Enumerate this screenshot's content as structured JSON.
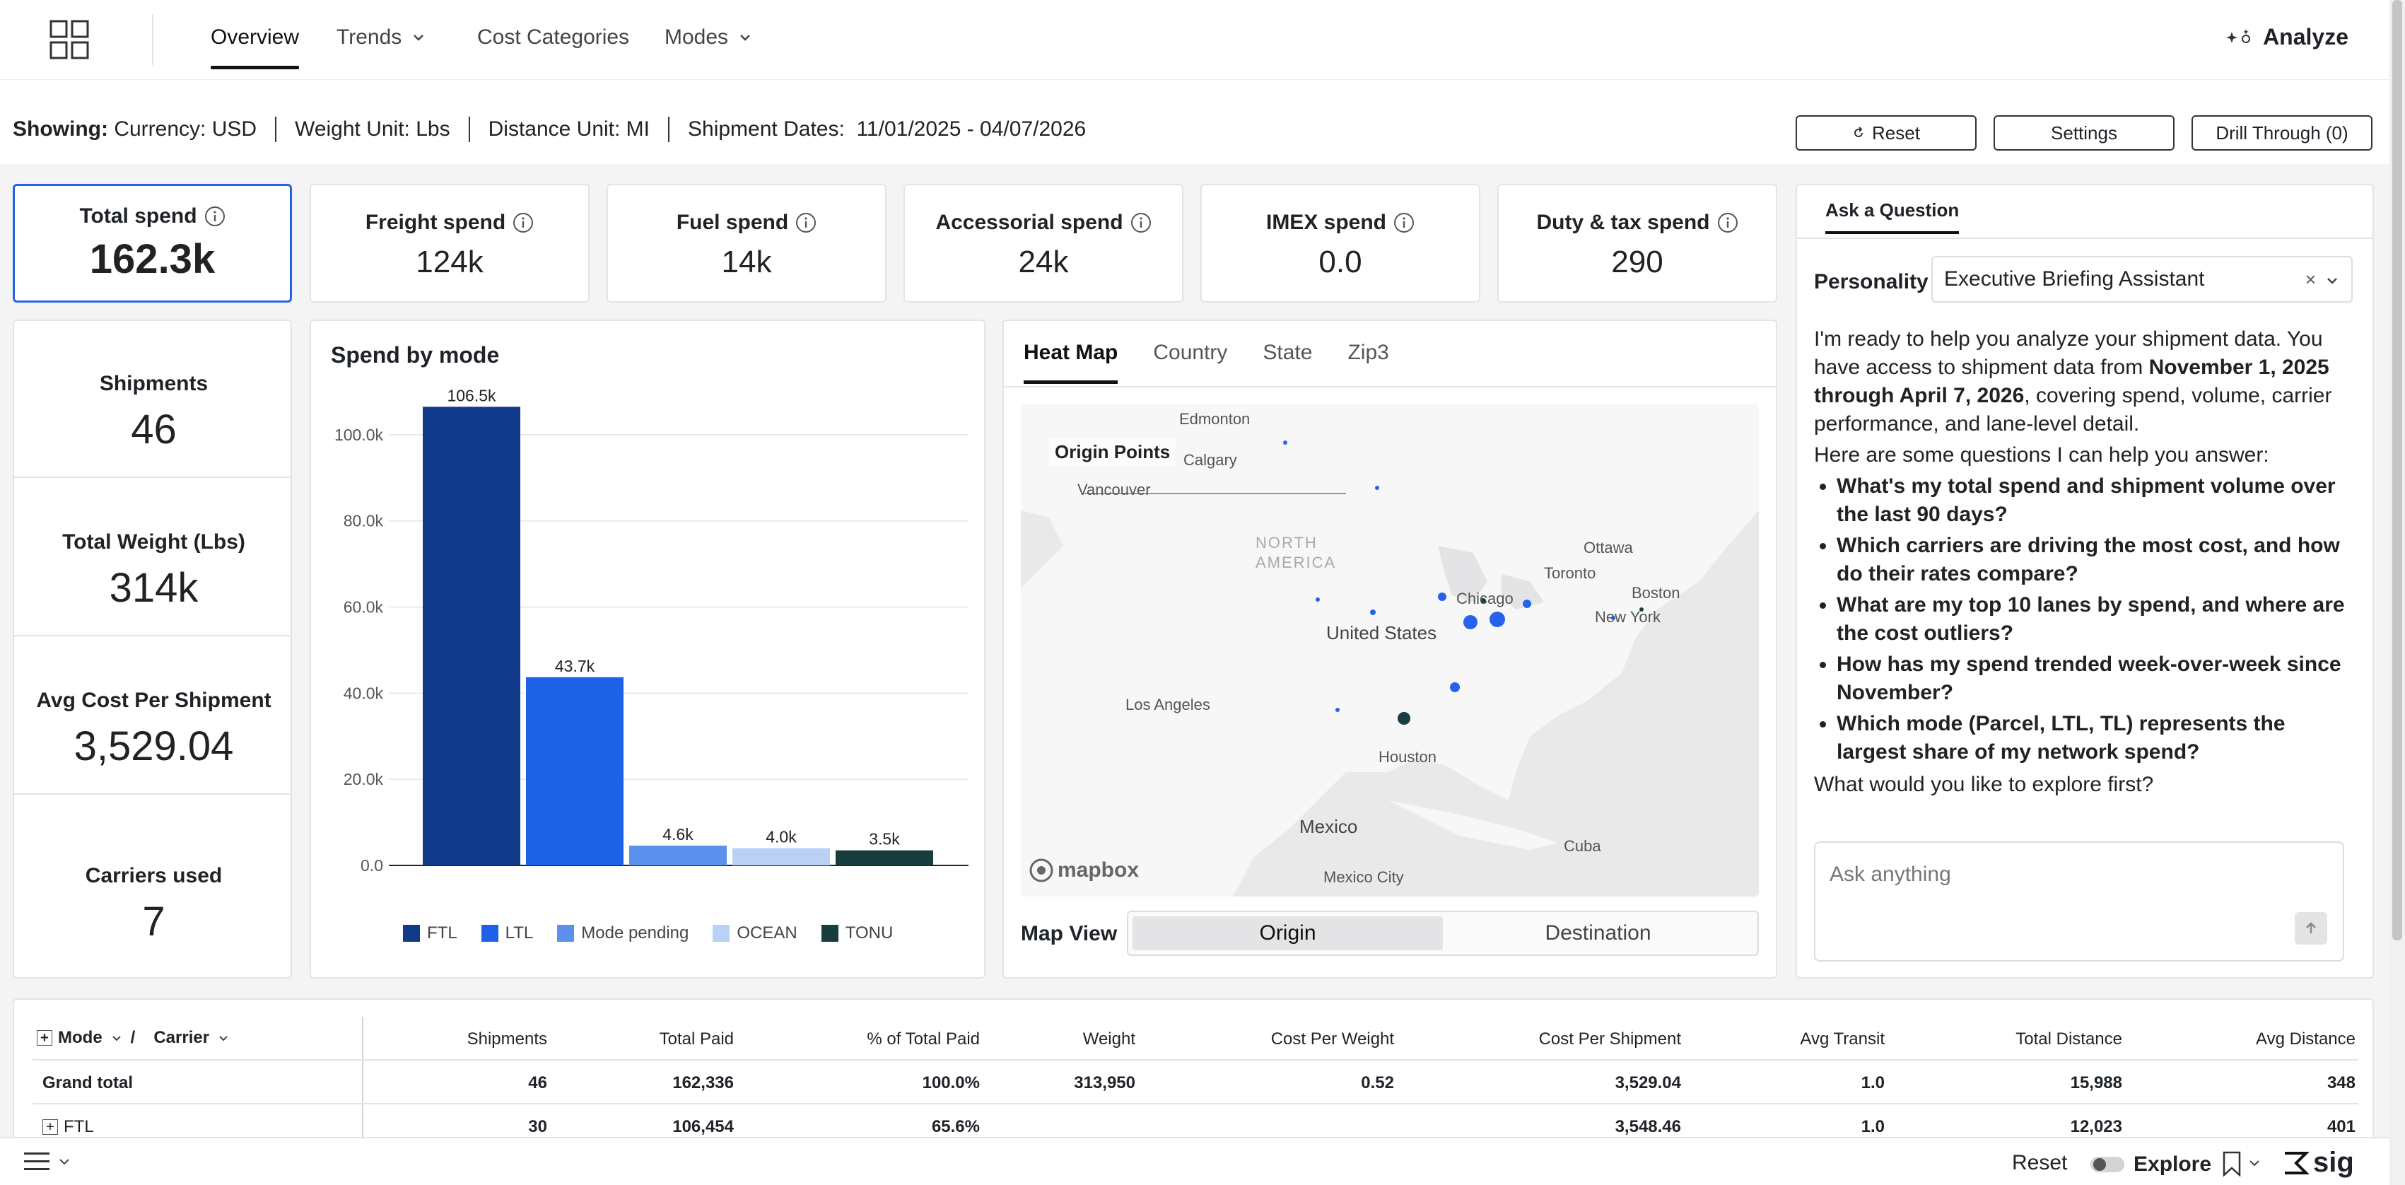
{
  "nav": {
    "tabs": [
      {
        "label": "Overview"
      },
      {
        "label": "Trends"
      },
      {
        "label": "Cost Categories"
      },
      {
        "label": "Modes"
      }
    ],
    "analyze_label": "Analyze"
  },
  "filters": {
    "showing_label": "Showing:",
    "currency": "Currency: USD",
    "weight": "Weight Unit: Lbs",
    "distance": "Distance Unit: MI",
    "dates_label": "Shipment Dates:",
    "dates_value": "11/01/2025 - 04/07/2026",
    "reset_label": "Reset",
    "settings_label": "Settings",
    "drill_label": "Drill Through (0)"
  },
  "kpis": [
    {
      "title": "Total spend",
      "value": "162.3k"
    },
    {
      "title": "Freight spend",
      "value": "124k"
    },
    {
      "title": "Fuel spend",
      "value": "14k"
    },
    {
      "title": "Accessorial spend",
      "value": "24k"
    },
    {
      "title": "IMEX spend",
      "value": "0.0"
    },
    {
      "title": "Duty & tax spend",
      "value": "290"
    }
  ],
  "side_stats": [
    {
      "title": "Shipments",
      "value": "46"
    },
    {
      "title": "Total Weight (Lbs)",
      "value": "314k"
    },
    {
      "title": "Avg Cost Per Shipment",
      "value": "3,529.04"
    },
    {
      "title": "Carriers used",
      "value": "7"
    }
  ],
  "chart_data": {
    "type": "bar",
    "title": "Spend by mode",
    "categories": [
      "FTL",
      "LTL",
      "Mode pending",
      "OCEAN",
      "TONU"
    ],
    "values": [
      106500,
      43700,
      4600,
      4000,
      3500
    ],
    "value_labels": [
      "106.5k",
      "43.7k",
      "4.6k",
      "4.0k",
      "3.5k"
    ],
    "colors": [
      "#123a8a",
      "#1d62e6",
      "#5b91ec",
      "#b8d1f5",
      "#173d3f"
    ],
    "ylim": [
      0,
      110000
    ],
    "yticks": [
      0,
      20000,
      40000,
      60000,
      80000,
      100000
    ],
    "ytick_labels": [
      "0.0",
      "20.0k",
      "40.0k",
      "60.0k",
      "80.0k",
      "100.0k"
    ],
    "grid": true,
    "legend": "bottom"
  },
  "map": {
    "tabs": [
      {
        "label": "Heat Map"
      },
      {
        "label": "Country"
      },
      {
        "label": "State"
      },
      {
        "label": "Zip3"
      }
    ],
    "origin_points": "Origin Points",
    "labels": {
      "edmonton": "Edmonton",
      "calgary": "Calgary",
      "vancouver": "Vancouver",
      "north_america": "NORTH AMERICA",
      "ottawa": "Ottawa",
      "toronto": "Toronto",
      "chicago": "Chicago",
      "boston": "Boston",
      "new_york": "New York",
      "united_states": "United States",
      "los_angeles": "Los Angeles",
      "houston": "Houston",
      "mexico": "Mexico",
      "cuba": "Cuba",
      "mexico_city": "Mexico City"
    },
    "attribution": "mapbox",
    "view_label": "Map View",
    "view_options": [
      "Origin",
      "Destination"
    ],
    "view_selected": "Origin"
  },
  "assistant": {
    "tab": "Ask a Question",
    "personality_label": "Personality",
    "personality_value": "Executive Briefing Assistant",
    "intro_1": "I'm ready to help you analyze your shipment data. You have access to shipment data from ",
    "intro_bold": "November 1, 2025 through April 7, 2026",
    "intro_2": ", covering spend, volume, carrier performance, and lane-level detail.",
    "questions_intro": "Here are some questions I can help you answer:",
    "questions": [
      "What's my total spend and shipment volume over the last 90 days?",
      "Which carriers are driving the most cost, and how do their rates compare?",
      "What are my top 10 lanes by spend, and where are the cost outliers?",
      "How has my spend trended week-over-week since November?",
      "Which mode (Parcel, LTL, TL) represents the largest share of my network spend?"
    ],
    "closing": "What would you like to explore first?",
    "input_placeholder": "Ask anything"
  },
  "table": {
    "headers": {
      "mode": "Mode",
      "slash": "/",
      "carrier": "Carrier",
      "shipments": "Shipments",
      "total_paid": "Total Paid",
      "pct_total_paid": "% of Total Paid",
      "weight": "Weight",
      "cost_per_weight": "Cost Per Weight",
      "cost_per_shipment": "Cost Per Shipment",
      "avg_transit": "Avg Transit",
      "total_distance": "Total Distance",
      "avg_distance": "Avg Distance"
    },
    "rows": [
      {
        "label": "Grand total",
        "shipments": "46",
        "total_paid": "162,336",
        "pct": "100.0%",
        "weight": "313,950",
        "cpw": "0.52",
        "cps": "3,529.04",
        "transit": "1.0",
        "dist": "15,988",
        "avgdist": "348"
      },
      {
        "label": "FTL",
        "shipments": "30",
        "total_paid": "106,454",
        "pct": "65.6%",
        "weight": "",
        "cpw": "",
        "cps": "3,548.46",
        "transit": "1.0",
        "dist": "12,023",
        "avgdist": "401"
      }
    ]
  },
  "bottom": {
    "reset": "Reset",
    "explore": "Explore",
    "brand": "sig"
  }
}
